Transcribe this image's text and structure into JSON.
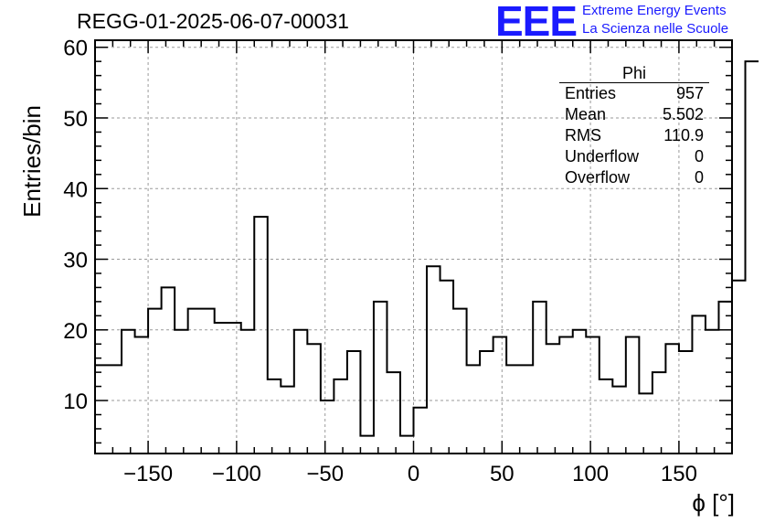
{
  "header": {
    "title": "REGG-01-2025-06-07-00031"
  },
  "logo": {
    "mark": "EEE",
    "line1": "Extreme Energy Events",
    "line2": "La Scienza nelle Scuole",
    "color": "#1a1aff"
  },
  "stats_box": {
    "title": "Phi",
    "rows": [
      {
        "label": "Entries",
        "value": "957"
      },
      {
        "label": "Mean",
        "value": "5.502"
      },
      {
        "label": "RMS",
        "value": "110.9"
      },
      {
        "label": "Underflow",
        "value": "0"
      },
      {
        "label": "Overflow",
        "value": "0"
      }
    ]
  },
  "chart_data": {
    "type": "bar",
    "style": "step-histogram",
    "title": "REGG-01-2025-06-07-00031",
    "xlabel": "ϕ [°]",
    "ylabel": "Entries/bin",
    "xlim": [
      -180,
      180
    ],
    "ylim": [
      2.5,
      61
    ],
    "bin_width": 7.5,
    "bin_edges_start": -180,
    "x_ticks": [
      -150,
      -100,
      -50,
      0,
      50,
      100,
      150
    ],
    "y_ticks": [
      10,
      20,
      30,
      40,
      50,
      60
    ],
    "grid": true,
    "values": [
      15,
      15,
      20,
      19,
      23,
      26,
      20,
      23,
      23,
      21,
      21,
      20,
      36,
      13,
      12,
      20,
      18,
      10,
      13,
      17,
      5,
      24,
      14,
      5,
      9,
      29,
      27,
      23,
      15,
      17,
      19,
      15,
      15,
      24,
      18,
      19,
      20,
      19,
      13,
      12,
      19,
      11,
      14,
      18,
      17,
      22,
      20,
      24,
      27,
      58
    ],
    "line_color": "#000000",
    "grid_color": "#9a9a9a"
  }
}
